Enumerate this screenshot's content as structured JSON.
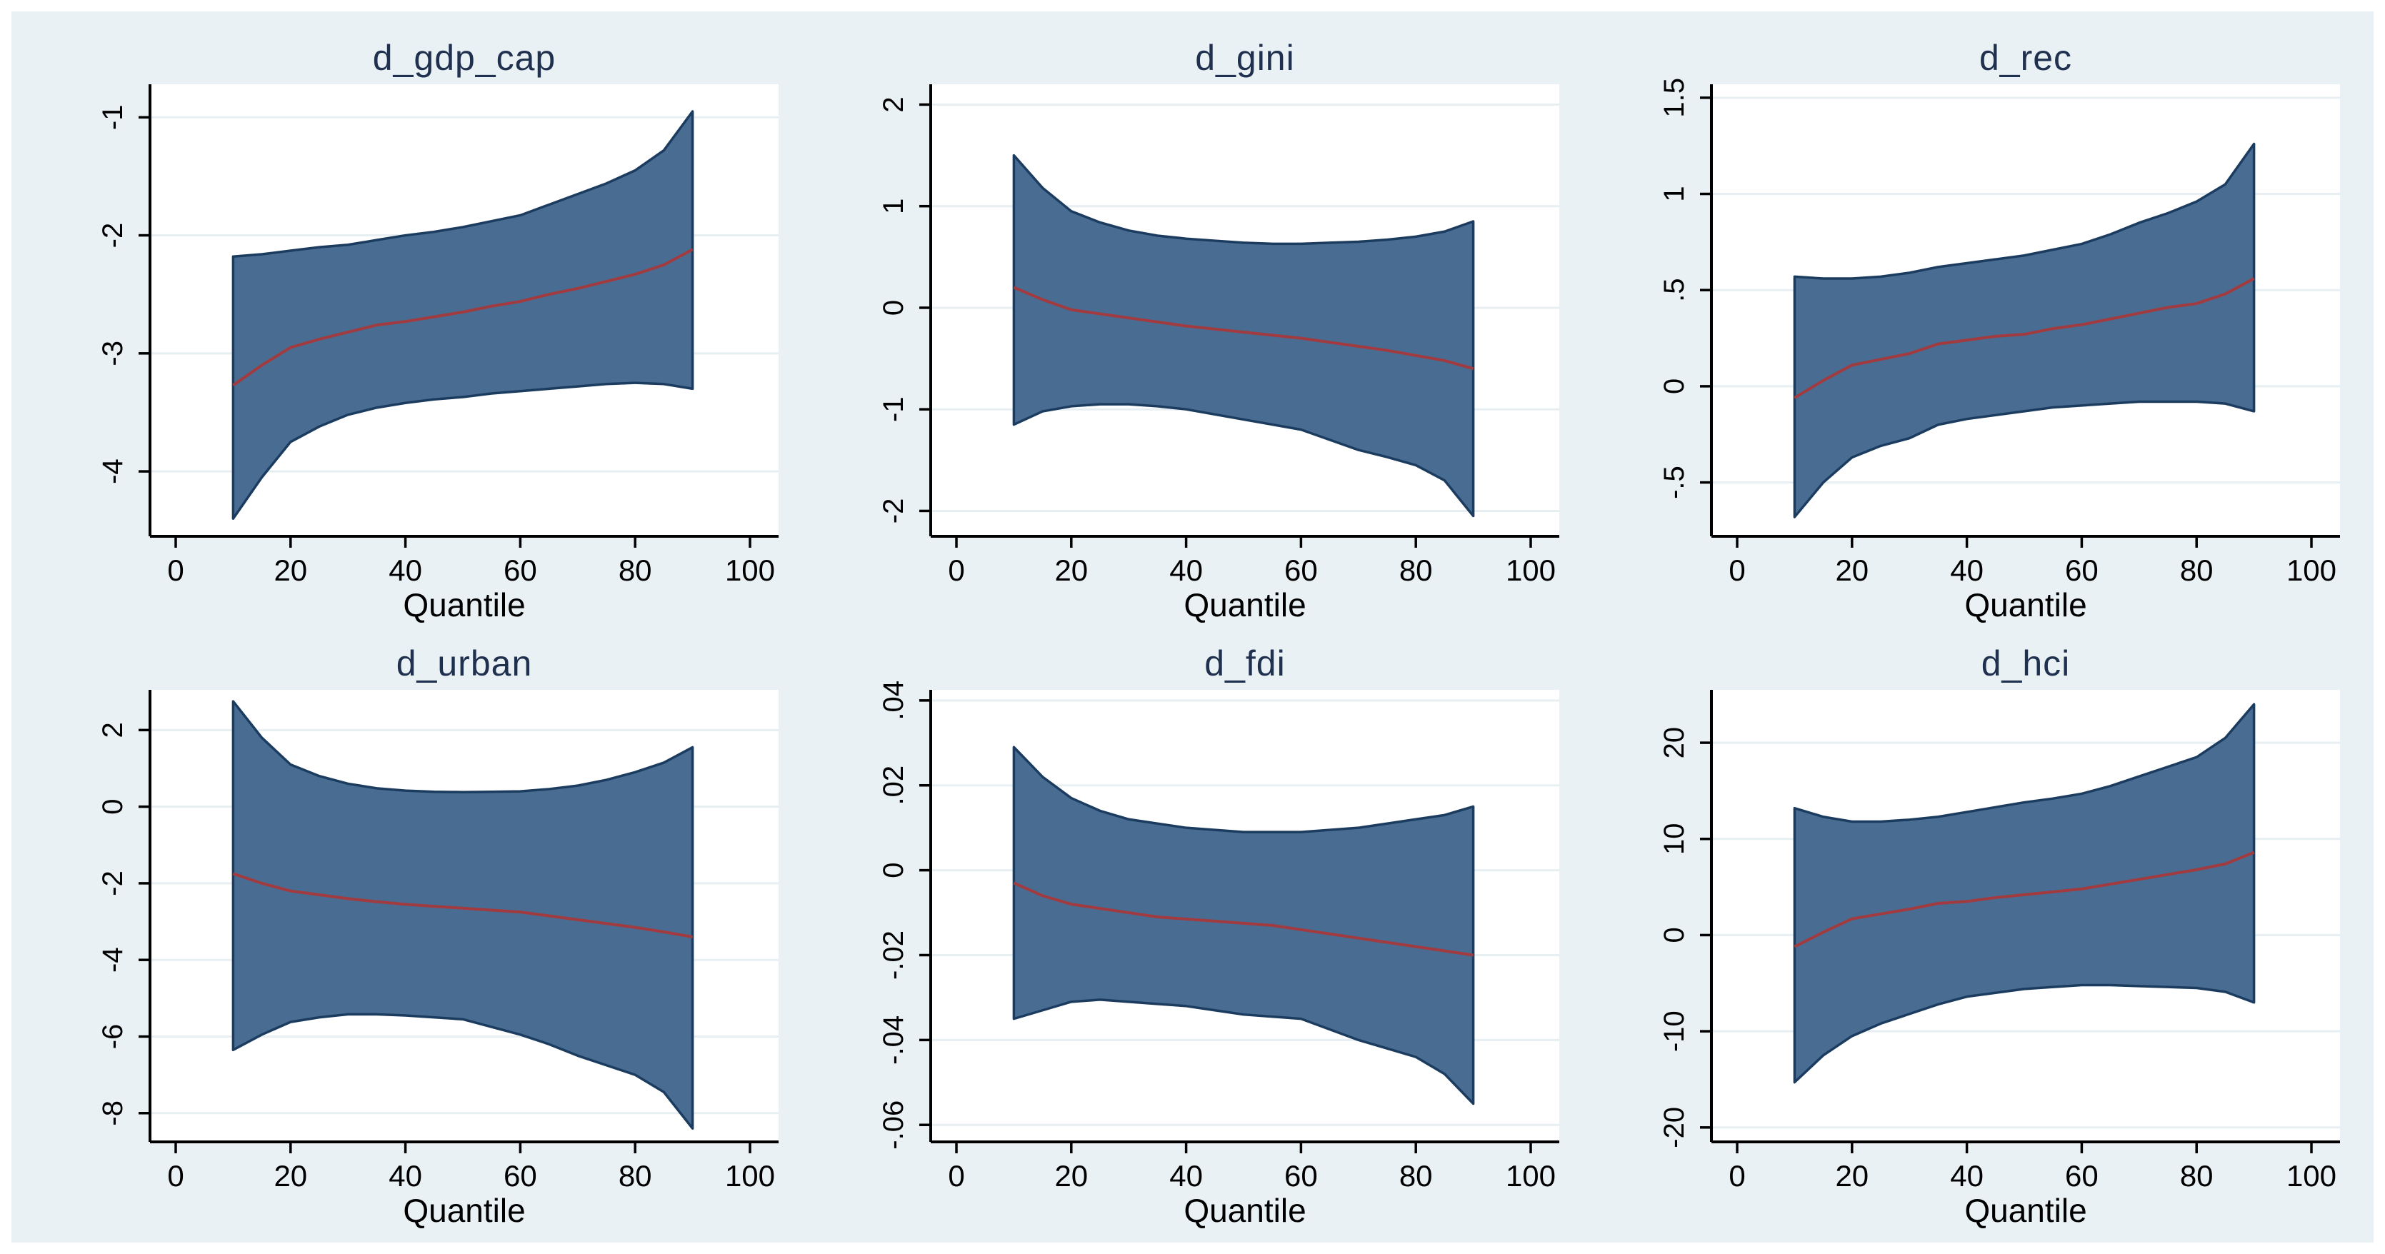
{
  "colors": {
    "page_border": "#ffffff",
    "background": "#e9f1f4",
    "plot_background": "#ffffff",
    "gridline": "#e7eff3",
    "band_fill": "#486c92",
    "band_edge": "#1c3c5f",
    "coef_line": "#a23b3f",
    "axis": "#000000",
    "title_text": "#20304f"
  },
  "chart_data": [
    {
      "type": "area",
      "title": "d_gdp_cap",
      "xlabel": "Quantile",
      "x_ticks": [
        0,
        20,
        40,
        60,
        80,
        100
      ],
      "y_ticks": [
        {
          "v": -1,
          "label": "-1"
        },
        {
          "v": -2,
          "label": "-2"
        },
        {
          "v": -3,
          "label": "-3"
        },
        {
          "v": -4,
          "label": "-4"
        }
      ],
      "xlim": [
        0,
        100
      ],
      "ylim": [
        -4.55,
        -0.72
      ],
      "grid": true,
      "quantiles": [
        10,
        15,
        20,
        25,
        30,
        35,
        40,
        45,
        50,
        55,
        60,
        65,
        70,
        75,
        80,
        85,
        90
      ],
      "series": [
        {
          "name": "coefficient",
          "values": [
            -3.27,
            -3.1,
            -2.95,
            -2.88,
            -2.82,
            -2.76,
            -2.73,
            -2.69,
            -2.65,
            -2.6,
            -2.56,
            -2.5,
            -2.45,
            -2.39,
            -2.33,
            -2.25,
            -2.12
          ]
        },
        {
          "name": "ci_upper",
          "values": [
            -2.18,
            -2.16,
            -2.13,
            -2.1,
            -2.08,
            -2.04,
            -2.0,
            -1.97,
            -1.93,
            -1.88,
            -1.83,
            -1.74,
            -1.65,
            -1.56,
            -1.45,
            -1.28,
            -0.95
          ]
        },
        {
          "name": "ci_lower",
          "values": [
            -4.4,
            -4.05,
            -3.75,
            -3.62,
            -3.52,
            -3.46,
            -3.42,
            -3.39,
            -3.37,
            -3.34,
            -3.32,
            -3.3,
            -3.28,
            -3.26,
            -3.25,
            -3.26,
            -3.3
          ]
        }
      ]
    },
    {
      "type": "area",
      "title": "d_gini",
      "xlabel": "Quantile",
      "x_ticks": [
        0,
        20,
        40,
        60,
        80,
        100
      ],
      "y_ticks": [
        {
          "v": 2,
          "label": "2"
        },
        {
          "v": 1,
          "label": "1"
        },
        {
          "v": 0,
          "label": "0"
        },
        {
          "v": -1,
          "label": "-1"
        },
        {
          "v": -2,
          "label": "-2"
        }
      ],
      "xlim": [
        0,
        100
      ],
      "ylim": [
        -2.25,
        2.2
      ],
      "grid": true,
      "quantiles": [
        10,
        15,
        20,
        25,
        30,
        35,
        40,
        45,
        50,
        55,
        60,
        65,
        70,
        75,
        80,
        85,
        90
      ],
      "series": [
        {
          "name": "coefficient",
          "values": [
            0.2,
            0.08,
            -0.02,
            -0.06,
            -0.1,
            -0.14,
            -0.18,
            -0.21,
            -0.24,
            -0.27,
            -0.3,
            -0.34,
            -0.38,
            -0.42,
            -0.47,
            -0.52,
            -0.6
          ]
        },
        {
          "name": "ci_upper",
          "values": [
            1.5,
            1.18,
            0.95,
            0.84,
            0.76,
            0.71,
            0.68,
            0.66,
            0.64,
            0.63,
            0.63,
            0.64,
            0.65,
            0.67,
            0.7,
            0.75,
            0.85
          ]
        },
        {
          "name": "ci_lower",
          "values": [
            -1.15,
            -1.02,
            -0.97,
            -0.95,
            -0.95,
            -0.97,
            -1.0,
            -1.05,
            -1.1,
            -1.15,
            -1.2,
            -1.3,
            -1.4,
            -1.47,
            -1.55,
            -1.7,
            -2.05
          ]
        }
      ]
    },
    {
      "type": "area",
      "title": "d_rec",
      "xlabel": "Quantile",
      "x_ticks": [
        0,
        20,
        40,
        60,
        80,
        100
      ],
      "y_ticks": [
        {
          "v": 1.5,
          "label": "1.5"
        },
        {
          "v": 1,
          "label": "1"
        },
        {
          "v": 0.5,
          "label": ".5"
        },
        {
          "v": 0,
          "label": "0"
        },
        {
          "v": -0.5,
          "label": "-.5"
        }
      ],
      "xlim": [
        0,
        100
      ],
      "ylim": [
        -0.78,
        1.57
      ],
      "grid": true,
      "quantiles": [
        10,
        15,
        20,
        25,
        30,
        35,
        40,
        45,
        50,
        55,
        60,
        65,
        70,
        75,
        80,
        85,
        90
      ],
      "series": [
        {
          "name": "coefficient",
          "values": [
            -0.06,
            0.03,
            0.11,
            0.14,
            0.17,
            0.22,
            0.24,
            0.26,
            0.27,
            0.3,
            0.32,
            0.35,
            0.38,
            0.41,
            0.43,
            0.48,
            0.56
          ]
        },
        {
          "name": "ci_upper",
          "values": [
            0.57,
            0.56,
            0.56,
            0.57,
            0.59,
            0.62,
            0.64,
            0.66,
            0.68,
            0.71,
            0.74,
            0.79,
            0.85,
            0.9,
            0.96,
            1.05,
            1.26
          ]
        },
        {
          "name": "ci_lower",
          "values": [
            -0.68,
            -0.5,
            -0.37,
            -0.31,
            -0.27,
            -0.2,
            -0.17,
            -0.15,
            -0.13,
            -0.11,
            -0.1,
            -0.09,
            -0.08,
            -0.08,
            -0.08,
            -0.09,
            -0.13
          ]
        }
      ]
    },
    {
      "type": "area",
      "title": "d_urban",
      "xlabel": "Quantile",
      "x_ticks": [
        0,
        20,
        40,
        60,
        80,
        100
      ],
      "y_ticks": [
        {
          "v": 2,
          "label": "2"
        },
        {
          "v": 0,
          "label": "0"
        },
        {
          "v": -2,
          "label": "-2"
        },
        {
          "v": -4,
          "label": "-4"
        },
        {
          "v": -6,
          "label": "-6"
        },
        {
          "v": -8,
          "label": "-8"
        }
      ],
      "xlim": [
        0,
        100
      ],
      "ylim": [
        -8.75,
        3.05
      ],
      "grid": true,
      "quantiles": [
        10,
        15,
        20,
        25,
        30,
        35,
        40,
        45,
        50,
        55,
        60,
        65,
        70,
        75,
        80,
        85,
        90
      ],
      "series": [
        {
          "name": "coefficient",
          "values": [
            -1.75,
            -2.0,
            -2.2,
            -2.3,
            -2.4,
            -2.48,
            -2.55,
            -2.6,
            -2.65,
            -2.7,
            -2.75,
            -2.85,
            -2.95,
            -3.05,
            -3.15,
            -3.27,
            -3.4
          ]
        },
        {
          "name": "ci_upper",
          "values": [
            2.75,
            1.8,
            1.1,
            0.8,
            0.6,
            0.48,
            0.42,
            0.39,
            0.38,
            0.39,
            0.4,
            0.46,
            0.55,
            0.7,
            0.9,
            1.15,
            1.55
          ]
        },
        {
          "name": "ci_lower",
          "values": [
            -6.35,
            -5.95,
            -5.62,
            -5.5,
            -5.42,
            -5.42,
            -5.45,
            -5.5,
            -5.55,
            -5.75,
            -5.95,
            -6.2,
            -6.5,
            -6.75,
            -7.0,
            -7.45,
            -8.4
          ]
        }
      ]
    },
    {
      "type": "area",
      "title": "d_fdi",
      "xlabel": "Quantile",
      "x_ticks": [
        0,
        20,
        40,
        60,
        80,
        100
      ],
      "y_ticks": [
        {
          "v": 0.04,
          "label": ".04"
        },
        {
          "v": 0.02,
          "label": ".02"
        },
        {
          "v": 0,
          "label": "0"
        },
        {
          "v": -0.02,
          "label": "-.02"
        },
        {
          "v": -0.04,
          "label": "-.04"
        },
        {
          "v": -0.06,
          "label": "-.06"
        }
      ],
      "xlim": [
        0,
        100
      ],
      "ylim": [
        -0.064,
        0.0425
      ],
      "grid": true,
      "quantiles": [
        10,
        15,
        20,
        25,
        30,
        35,
        40,
        45,
        50,
        55,
        60,
        65,
        70,
        75,
        80,
        85,
        90
      ],
      "series": [
        {
          "name": "coefficient",
          "values": [
            -0.003,
            -0.006,
            -0.008,
            -0.009,
            -0.01,
            -0.011,
            -0.0115,
            -0.012,
            -0.0125,
            -0.013,
            -0.014,
            -0.015,
            -0.016,
            -0.017,
            -0.018,
            -0.019,
            -0.02
          ]
        },
        {
          "name": "ci_upper",
          "values": [
            0.029,
            0.022,
            0.017,
            0.014,
            0.012,
            0.011,
            0.01,
            0.0095,
            0.009,
            0.009,
            0.009,
            0.0095,
            0.01,
            0.011,
            0.012,
            0.013,
            0.015
          ]
        },
        {
          "name": "ci_lower",
          "values": [
            -0.035,
            -0.033,
            -0.031,
            -0.0305,
            -0.031,
            -0.0315,
            -0.032,
            -0.033,
            -0.034,
            -0.0345,
            -0.035,
            -0.0375,
            -0.04,
            -0.042,
            -0.044,
            -0.048,
            -0.055
          ]
        }
      ]
    },
    {
      "type": "area",
      "title": "d_hci",
      "xlabel": "Quantile",
      "x_ticks": [
        0,
        20,
        40,
        60,
        80,
        100
      ],
      "y_ticks": [
        {
          "v": 20,
          "label": "20"
        },
        {
          "v": 10,
          "label": "10"
        },
        {
          "v": 0,
          "label": "0"
        },
        {
          "v": -10,
          "label": "-10"
        },
        {
          "v": -20,
          "label": "-20"
        }
      ],
      "xlim": [
        0,
        100
      ],
      "ylim": [
        -21.5,
        25.5
      ],
      "grid": true,
      "quantiles": [
        10,
        15,
        20,
        25,
        30,
        35,
        40,
        45,
        50,
        55,
        60,
        65,
        70,
        75,
        80,
        85,
        90
      ],
      "series": [
        {
          "name": "coefficient",
          "values": [
            -1.2,
            0.3,
            1.7,
            2.2,
            2.7,
            3.3,
            3.5,
            3.9,
            4.2,
            4.5,
            4.8,
            5.3,
            5.8,
            6.3,
            6.8,
            7.4,
            8.6
          ]
        },
        {
          "name": "ci_upper",
          "values": [
            13.2,
            12.3,
            11.8,
            11.8,
            12.0,
            12.3,
            12.8,
            13.3,
            13.8,
            14.2,
            14.7,
            15.5,
            16.5,
            17.5,
            18.5,
            20.5,
            24.0
          ]
        },
        {
          "name": "ci_lower",
          "values": [
            -15.3,
            -12.5,
            -10.5,
            -9.2,
            -8.2,
            -7.2,
            -6.4,
            -6.0,
            -5.6,
            -5.4,
            -5.2,
            -5.2,
            -5.3,
            -5.4,
            -5.5,
            -5.9,
            -7.0
          ]
        }
      ]
    }
  ]
}
